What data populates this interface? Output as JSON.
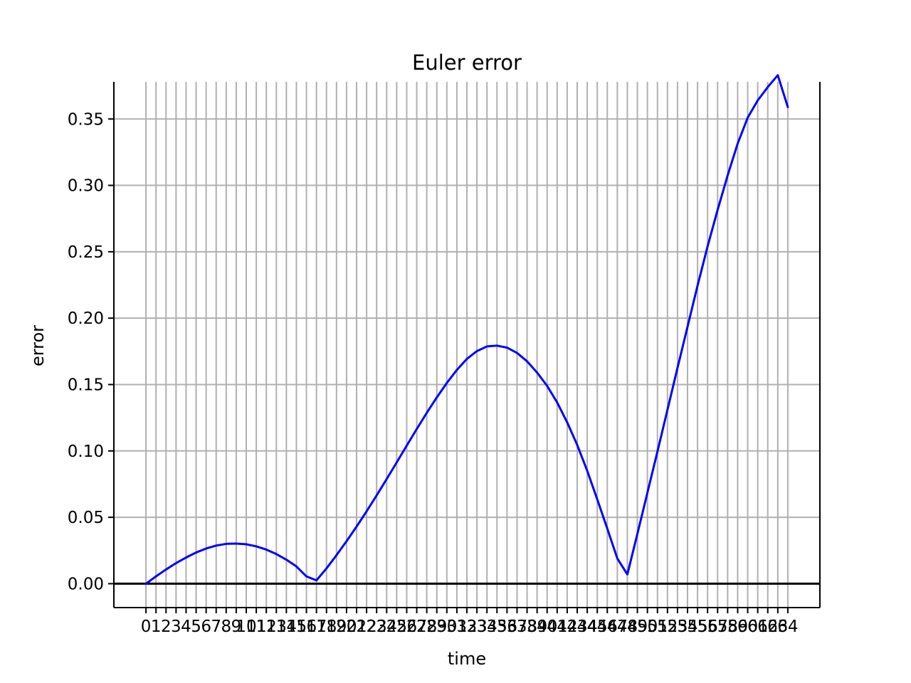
{
  "chart_data": {
    "type": "line",
    "title": "Euler error",
    "xlabel": "time",
    "ylabel": "error",
    "xlim": [
      -3.2,
      67.2
    ],
    "ylim": [
      -0.018,
      0.378
    ],
    "xticks": [
      0,
      1,
      2,
      3,
      4,
      5,
      6,
      7,
      8,
      9,
      10,
      11,
      12,
      13,
      14,
      15,
      16,
      17,
      18,
      19,
      20,
      21,
      22,
      23,
      24,
      25,
      26,
      27,
      28,
      29,
      30,
      31,
      32,
      33,
      34,
      35,
      36,
      37,
      38,
      39,
      40,
      41,
      42,
      43,
      44,
      45,
      46,
      47,
      48,
      49,
      50,
      51,
      52,
      53,
      54,
      55,
      56,
      57,
      58,
      59,
      60,
      61,
      62,
      63,
      64
    ],
    "yticks": [
      0.0,
      0.05,
      0.1,
      0.15,
      0.2,
      0.25,
      0.3,
      0.35
    ],
    "ytick_labels": [
      "0.00",
      "0.05",
      "0.10",
      "0.15",
      "0.20",
      "0.25",
      "0.30",
      "0.35"
    ],
    "grid": true,
    "hline": 0,
    "colors": {
      "series": "#0000ff",
      "grid": "#b0b0b0",
      "axis": "#000000"
    },
    "x": [
      0,
      1,
      2,
      3,
      4,
      5,
      6,
      7,
      8,
      9,
      10,
      11,
      12,
      13,
      14,
      15,
      16,
      17,
      18,
      19,
      20,
      21,
      22,
      23,
      24,
      25,
      26,
      27,
      28,
      29,
      30,
      31,
      32,
      33,
      34,
      35,
      36,
      37,
      38,
      39,
      40,
      41,
      42,
      43,
      44,
      45,
      46,
      47,
      48,
      49,
      50,
      51,
      52,
      53,
      54,
      55,
      56,
      57,
      58,
      59,
      60,
      61,
      62,
      63,
      64
    ],
    "series": [
      {
        "color": "#0000ff",
        "values": [
          0.0,
          0.0055,
          0.0107,
          0.0155,
          0.0197,
          0.0235,
          0.0265,
          0.0287,
          0.03,
          0.0302,
          0.0297,
          0.0281,
          0.0257,
          0.0223,
          0.0181,
          0.013,
          0.0055,
          0.0025,
          0.0115,
          0.0215,
          0.032,
          0.043,
          0.0545,
          0.0665,
          0.0788,
          0.0913,
          0.104,
          0.1165,
          0.1287,
          0.1403,
          0.1512,
          0.161,
          0.1693,
          0.1752,
          0.1787,
          0.1793,
          0.1778,
          0.1738,
          0.1675,
          0.159,
          0.149,
          0.1365,
          0.1215,
          0.1045,
          0.085,
          0.0635,
          0.0415,
          0.019,
          0.007,
          0.0375,
          0.0685,
          0.0995,
          0.131,
          0.1625,
          0.1935,
          0.2245,
          0.254,
          0.2815,
          0.3075,
          0.3315,
          0.351,
          0.364,
          0.374,
          0.383,
          0.359
        ]
      }
    ]
  }
}
